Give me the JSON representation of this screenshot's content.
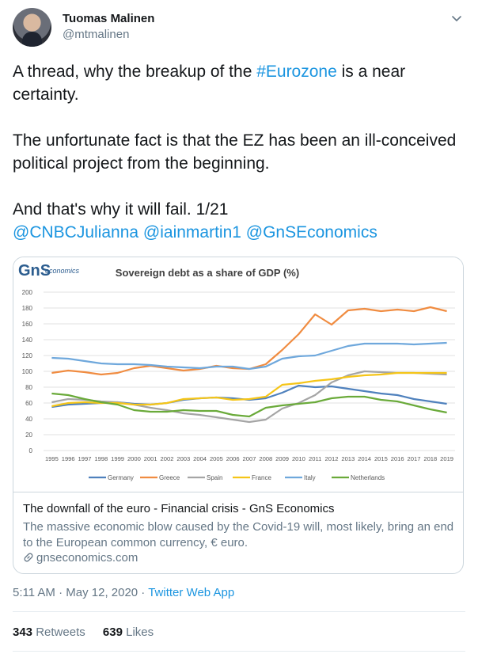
{
  "author": {
    "name": "Tuomas Malinen",
    "handle": "@mtmalinen"
  },
  "tweet": {
    "line1_pre": "A thread, why the breakup of the ",
    "hashtag": "#Eurozone",
    "line1_post": " is a near certainty.",
    "para2": "The unfortunate fact is that the EZ has been an ill-conceived political project from the beginning.",
    "para3": "And that's why it will fail. 1/21",
    "mentions": [
      "@CNBCJulianna",
      "@iainmartin1",
      "@GnSEconomics"
    ]
  },
  "card": {
    "logo_text": "GnS",
    "logo_sub": "economics",
    "title": "The downfall of the euro - Financial crisis - GnS Economics",
    "description": "The massive economic blow caused by the Covid-19 will, most likely, bring an end to the European common currency, € euro.",
    "domain": "gnseconomics.com"
  },
  "meta": {
    "time": "5:11 AM · May 12, 2020 · ",
    "app": "Twitter Web App"
  },
  "stats": {
    "retweets_count": "343",
    "retweets_label": "Retweets",
    "likes_count": "639",
    "likes_label": "Likes"
  },
  "chart_data": {
    "type": "line",
    "title": "Sovereign debt as a share of GDP (%)",
    "x": [
      "1995",
      "1996",
      "1997",
      "1998",
      "1999",
      "2000",
      "2001",
      "2002",
      "2003",
      "2004",
      "2005",
      "2006",
      "2007",
      "2008",
      "2009",
      "2010",
      "2011",
      "2012",
      "2013",
      "2014",
      "2015",
      "2016",
      "2017",
      "2018",
      "2019"
    ],
    "ylim": [
      0,
      200
    ],
    "yticks": [
      0,
      20,
      40,
      60,
      80,
      100,
      120,
      140,
      160,
      180,
      200
    ],
    "grid": true,
    "legend": "bottom",
    "series": [
      {
        "name": "Germany",
        "color": "#4f81bd",
        "values": [
          55,
          58,
          59,
          60,
          61,
          59,
          58,
          60,
          64,
          66,
          67,
          66,
          64,
          66,
          73,
          82,
          80,
          81,
          78,
          75,
          72,
          70,
          65,
          62,
          59
        ]
      },
      {
        "name": "Greece",
        "color": "#f08c41",
        "values": [
          98,
          101,
          99,
          96,
          98,
          104,
          107,
          104,
          101,
          103,
          107,
          104,
          103,
          109,
          127,
          147,
          172,
          159,
          177,
          179,
          176,
          178,
          176,
          181,
          176
        ]
      },
      {
        "name": "Spain",
        "color": "#a5a5a5",
        "values": [
          61,
          65,
          64,
          62,
          61,
          58,
          54,
          51,
          47,
          45,
          42,
          39,
          36,
          39,
          53,
          60,
          70,
          86,
          95,
          100,
          99,
          98,
          98,
          97,
          96
        ]
      },
      {
        "name": "France",
        "color": "#f5c518",
        "values": [
          56,
          60,
          61,
          60,
          60,
          58,
          58,
          60,
          65,
          66,
          67,
          64,
          65,
          68,
          83,
          85,
          88,
          90,
          93,
          95,
          96,
          98,
          98,
          98,
          98
        ]
      },
      {
        "name": "Italy",
        "color": "#6fa8dc",
        "values": [
          117,
          116,
          113,
          110,
          109,
          109,
          108,
          106,
          105,
          104,
          106,
          106,
          103,
          106,
          116,
          119,
          120,
          126,
          132,
          135,
          135,
          135,
          134,
          135,
          136
        ]
      },
      {
        "name": "Netherlands",
        "color": "#6aaa3a",
        "values": [
          72,
          70,
          65,
          61,
          58,
          51,
          49,
          49,
          51,
          50,
          50,
          45,
          43,
          54,
          57,
          59,
          61,
          66,
          68,
          68,
          64,
          62,
          57,
          52,
          48
        ]
      }
    ]
  }
}
